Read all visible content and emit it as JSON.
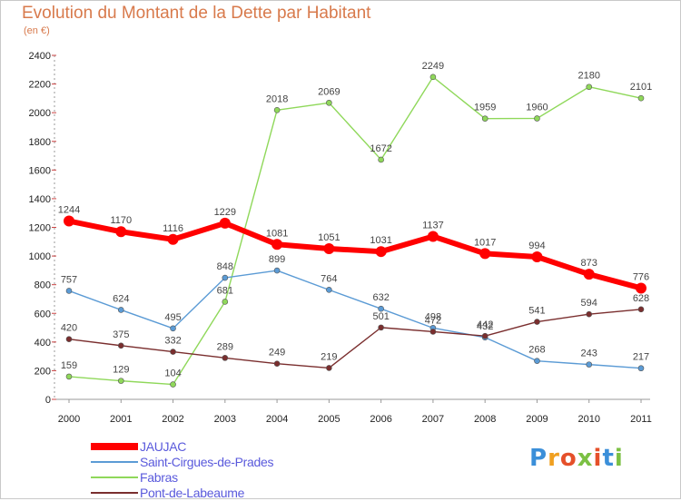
{
  "title": "Evolution du Montant de la Dette par Habitant",
  "unit_label": "(en €)",
  "brand": {
    "letters": [
      "P",
      "r",
      "o",
      "x",
      "i",
      "t",
      "i"
    ],
    "colors": [
      "#3b8fd9",
      "#f0a020",
      "#e5502a",
      "#7bc043",
      "#e5502a",
      "#3b8fd9",
      "#7bc043"
    ]
  },
  "chart_data": {
    "type": "line",
    "x": [
      "2000",
      "2001",
      "2002",
      "2003",
      "2004",
      "2005",
      "2006",
      "2007",
      "2008",
      "2009",
      "2010",
      "2011"
    ],
    "ylim": [
      0,
      2400
    ],
    "yticks": [
      "0",
      "200",
      "400",
      "600",
      "800",
      "1000",
      "1200",
      "1400",
      "1600",
      "1800",
      "2000",
      "2200",
      "2400"
    ],
    "grid": false,
    "legend_position": "bottom-left",
    "series": [
      {
        "name": "JAUJAC",
        "color": "#ff0000",
        "values": [
          1244,
          1170,
          1116,
          1229,
          1081,
          1051,
          1031,
          1137,
          1017,
          994,
          873,
          776
        ],
        "labels": [
          "1244",
          "1170",
          "1116",
          "1229",
          "1081",
          "1051",
          "1031",
          "1137",
          "1017",
          "994",
          "873",
          "776"
        ]
      },
      {
        "name": "Saint-Cirgues-de-Prades",
        "color": "#5b9bd5",
        "values": [
          757,
          624,
          495,
          848,
          899,
          764,
          632,
          498,
          432,
          268,
          243,
          217
        ],
        "labels": [
          "757",
          "624",
          "495",
          "848",
          "899",
          "764",
          "632",
          "498",
          "432",
          "268",
          "243",
          "217"
        ]
      },
      {
        "name": "Fabras",
        "color": "#8fd85a",
        "values": [
          159,
          129,
          104,
          681,
          2018,
          2069,
          1672,
          2249,
          1959,
          1960,
          2180,
          2101
        ],
        "labels": [
          "159",
          "129",
          "104",
          "681",
          "2018",
          "2069",
          "1672",
          "2249",
          "1959",
          "1960",
          "2180",
          "2101"
        ]
      },
      {
        "name": "Pont-de-Labeaume",
        "color": "#7a2e2e",
        "values": [
          420,
          375,
          332,
          289,
          249,
          219,
          501,
          472,
          442,
          541,
          594,
          628
        ],
        "labels": [
          "420",
          "375",
          "332",
          "289",
          "249",
          "219",
          "501",
          "472",
          "442",
          "541",
          "594",
          "628"
        ]
      }
    ]
  }
}
